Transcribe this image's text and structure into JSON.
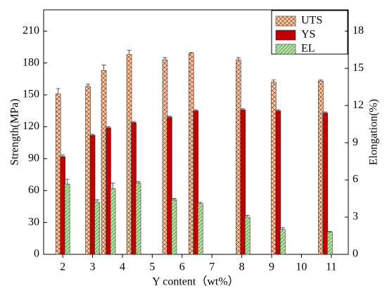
{
  "chart_data": {
    "type": "bar",
    "x_label": "Y content（wt%）",
    "y_label": "Strength(MPa)",
    "y2_label": "Elongation(%)",
    "x": [
      2.0,
      3.0,
      3.53,
      4.38,
      5.58,
      6.46,
      8.04,
      9.22,
      10.8
    ],
    "series": [
      {
        "name": "UTS",
        "color": "#f6cfae",
        "values": [
          151,
          158,
          173,
          188,
          183,
          189,
          183,
          162,
          163
        ],
        "errors": [
          5,
          2,
          5,
          4,
          2,
          1,
          2,
          2,
          1
        ]
      },
      {
        "name": "YS",
        "color": "#c00000",
        "values": [
          92,
          112,
          119,
          124,
          129,
          135,
          136,
          135,
          133
        ],
        "errors": [
          1.5,
          1,
          1,
          1,
          1,
          1,
          1,
          1,
          1
        ]
      },
      {
        "name": "EL",
        "color": "#b8e2a8",
        "axis": "y2",
        "values": [
          5.66,
          4.2,
          5.3,
          5.75,
          4.4,
          4.1,
          3.0,
          2.0,
          1.8
        ],
        "errors": [
          0.4,
          0.2,
          0.45,
          0.1,
          0.1,
          0.1,
          0.15,
          0.15,
          0.05
        ]
      }
    ],
    "xlim": [
      1.36,
      11.57
    ],
    "xticks": [
      2,
      3,
      4,
      5,
      6,
      7,
      8,
      9,
      10,
      11
    ],
    "ylim": [
      0,
      230
    ],
    "yticks": [
      0,
      30,
      60,
      90,
      120,
      150,
      180,
      210
    ],
    "y2lim": [
      0,
      19.71
    ],
    "y2ticks": [
      0,
      3,
      6,
      9,
      12,
      15,
      18
    ],
    "legend": "upper right"
  }
}
